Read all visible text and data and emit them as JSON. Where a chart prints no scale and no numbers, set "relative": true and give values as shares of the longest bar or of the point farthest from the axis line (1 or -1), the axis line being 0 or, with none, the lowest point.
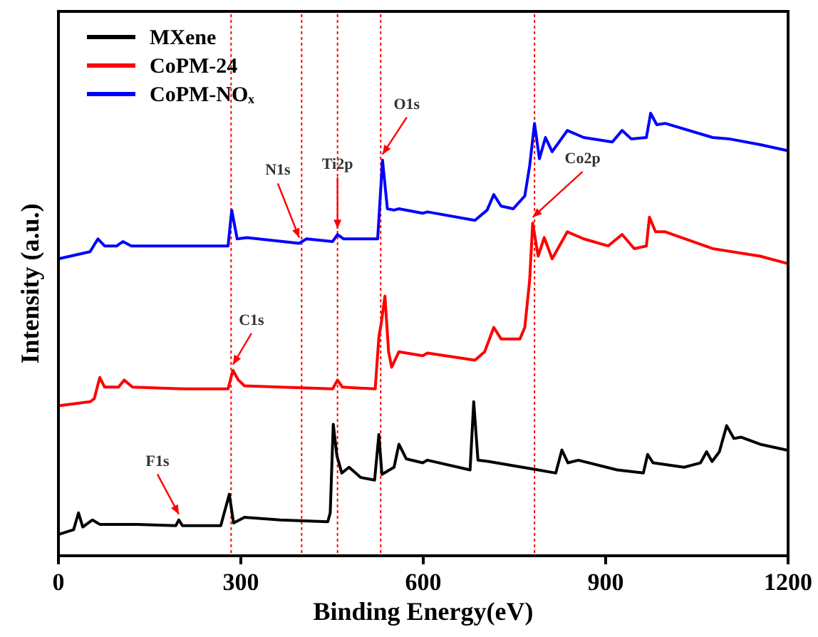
{
  "chart_data": {
    "type": "line",
    "xlabel": "Binding Energy(eV)",
    "ylabel": "Intensity (a.u.)",
    "relative": true,
    "xlim": [
      0,
      1200
    ],
    "xticks": [
      0,
      300,
      600,
      900,
      1200
    ],
    "tick_labels": "x",
    "legend": "top left",
    "grid": false,
    "marker": "none",
    "line_style": "solid",
    "series": [
      {
        "name": "MXene",
        "color": "#000000",
        "x": [
          0,
          25,
          33,
          40,
          56,
          68,
          130,
          193,
          198,
          204,
          267,
          281,
          288,
          306,
          365,
          443,
          447,
          452,
          458,
          466,
          478,
          497,
          520,
          527,
          532,
          552,
          560,
          572,
          599,
          607,
          677,
          683,
          690,
          708,
          763,
          818,
          828,
          838,
          855,
          919,
          962,
          969,
          978,
          1029,
          1056,
          1066,
          1075,
          1087,
          1099,
          1111,
          1123,
          1154,
          1197
        ],
        "values": [
          0.048,
          0.059,
          0.097,
          0.065,
          0.081,
          0.071,
          0.071,
          0.068,
          0.081,
          0.068,
          0.068,
          0.139,
          0.074,
          0.087,
          0.081,
          0.077,
          0.097,
          0.297,
          0.226,
          0.187,
          0.2,
          0.177,
          0.171,
          0.274,
          0.184,
          0.2,
          0.252,
          0.219,
          0.21,
          0.216,
          0.194,
          0.348,
          0.216,
          0.213,
          0.2,
          0.187,
          0.239,
          0.21,
          0.216,
          0.194,
          0.187,
          0.229,
          0.21,
          0.2,
          0.21,
          0.235,
          0.213,
          0.235,
          0.294,
          0.265,
          0.268,
          0.252,
          0.239
        ]
      },
      {
        "name": "CoPM-24",
        "color": "#ff0000",
        "x": [
          0,
          52,
          59,
          68,
          76,
          99,
          108,
          122,
          209,
          279,
          287,
          296,
          306,
          365,
          451,
          459,
          467,
          521,
          527,
          531,
          537,
          543,
          548,
          560,
          599,
          607,
          685,
          701,
          716,
          728,
          759,
          767,
          775,
          780,
          789,
          799,
          812,
          837,
          864,
          904,
          927,
          947,
          967,
          972,
          982,
          998,
          1076,
          1154,
          1197
        ],
        "values": [
          0.339,
          0.348,
          0.355,
          0.403,
          0.381,
          0.381,
          0.397,
          0.381,
          0.377,
          0.377,
          0.419,
          0.397,
          0.384,
          0.381,
          0.377,
          0.397,
          0.381,
          0.377,
          0.494,
          0.526,
          0.587,
          0.461,
          0.426,
          0.461,
          0.452,
          0.458,
          0.442,
          0.461,
          0.516,
          0.49,
          0.49,
          0.516,
          0.623,
          0.752,
          0.677,
          0.719,
          0.671,
          0.732,
          0.716,
          0.7,
          0.726,
          0.694,
          0.7,
          0.765,
          0.732,
          0.732,
          0.694,
          0.677,
          0.661
        ]
      },
      {
        "name": "CoPM-NOₓ",
        "color": "#0000ff",
        "x": [
          0,
          52,
          65,
          76,
          96,
          106,
          120,
          209,
          279,
          285,
          294,
          310,
          396,
          408,
          451,
          459,
          469,
          525,
          533,
          541,
          552,
          560,
          599,
          607,
          685,
          705,
          716,
          728,
          748,
          767,
          775,
          783,
          791,
          801,
          812,
          837,
          864,
          911,
          927,
          942,
          967,
          974,
          984,
          998,
          1076,
          1103,
          1154,
          1197
        ],
        "values": [
          0.671,
          0.687,
          0.716,
          0.7,
          0.7,
          0.71,
          0.7,
          0.7,
          0.7,
          0.781,
          0.716,
          0.719,
          0.706,
          0.716,
          0.71,
          0.726,
          0.716,
          0.716,
          0.894,
          0.784,
          0.781,
          0.784,
          0.774,
          0.777,
          0.758,
          0.781,
          0.816,
          0.79,
          0.784,
          0.813,
          0.881,
          0.977,
          0.897,
          0.945,
          0.913,
          0.961,
          0.945,
          0.935,
          0.961,
          0.942,
          0.945,
          1,
          0.974,
          0.977,
          0.945,
          0.942,
          0.929,
          0.916
        ]
      }
    ],
    "ref_lines": [
      {
        "axis": "x",
        "value": 284,
        "color": "#ff0000",
        "line_style": "dotted"
      },
      {
        "axis": "x",
        "value": 400,
        "color": "#ff0000",
        "line_style": "dotted"
      },
      {
        "axis": "x",
        "value": 459,
        "color": "#ff0000",
        "line_style": "dotted"
      },
      {
        "axis": "x",
        "value": 530,
        "color": "#ff0000",
        "line_style": "dotted"
      },
      {
        "axis": "x",
        "value": 783,
        "color": "#ff0000",
        "line_style": "dotted"
      }
    ],
    "annotations": [
      {
        "text": "F1s",
        "x": 198,
        "y": 0.081
      },
      {
        "text": "C1s",
        "x": 287,
        "y": 0.419
      },
      {
        "text": "N1s",
        "x": 396,
        "y": 0.706
      },
      {
        "text": "Ti2p",
        "x": 459,
        "y": 0.726
      },
      {
        "text": "O1s",
        "x": 533,
        "y": 0.894
      },
      {
        "text": "Co2p",
        "x": 780,
        "y": 0.752
      }
    ]
  }
}
